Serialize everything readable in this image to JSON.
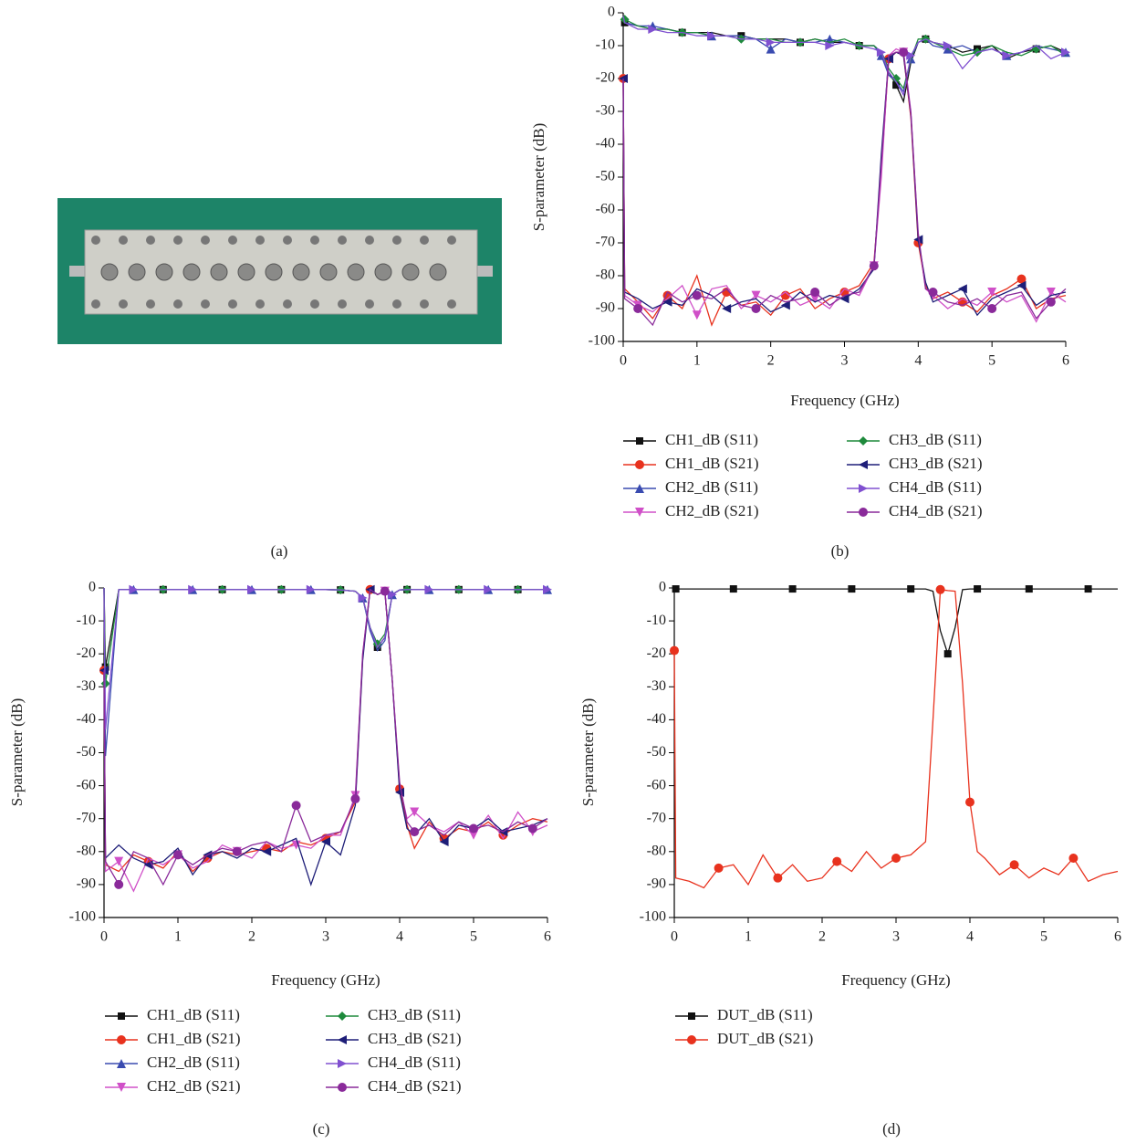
{
  "photo": {
    "label": "(a)"
  },
  "chart_data": [
    {
      "type": "line",
      "panel_label": "(b)",
      "x_label": "Frequency (GHz)",
      "y_label": "S-parameter (dB)",
      "xlim": [
        0,
        6
      ],
      "xticks": [
        0,
        1,
        2,
        3,
        4,
        5,
        6
      ],
      "ylim": [
        -100,
        0
      ],
      "yticks": [
        0,
        -10,
        -20,
        -30,
        -40,
        -50,
        -60,
        -70,
        -80,
        -90,
        -100
      ],
      "legend_columns": 2,
      "x": [
        0,
        0.02,
        0.2,
        0.4,
        0.6,
        0.8,
        1.0,
        1.2,
        1.4,
        1.6,
        1.8,
        2.0,
        2.2,
        2.4,
        2.6,
        2.8,
        3.0,
        3.2,
        3.4,
        3.5,
        3.6,
        3.7,
        3.8,
        3.9,
        4.0,
        4.1,
        4.2,
        4.4,
        4.6,
        4.8,
        5.0,
        5.2,
        5.4,
        5.6,
        5.8,
        6.0
      ],
      "series": [
        {
          "name": "CH1_dB (S11)",
          "color": "#111111",
          "marker": "square",
          "values": [
            -1,
            -3,
            -4,
            -5,
            -5,
            -6,
            -6,
            -6,
            -7,
            -7,
            -8,
            -8,
            -8,
            -9,
            -8,
            -9,
            -9,
            -10,
            -10,
            -12,
            -18,
            -22,
            -27,
            -15,
            -9,
            -8,
            -9,
            -10,
            -12,
            -11,
            -10,
            -14,
            -12,
            -11,
            -10,
            -12
          ]
        },
        {
          "name": "CH1_dB (S21)",
          "color": "#e8321e",
          "marker": "circle",
          "values": [
            -20,
            -84,
            -88,
            -93,
            -86,
            -90,
            -80,
            -95,
            -85,
            -89,
            -88,
            -92,
            -86,
            -84,
            -90,
            -87,
            -85,
            -83,
            -76,
            -48,
            -14,
            -12,
            -13,
            -32,
            -70,
            -83,
            -87,
            -85,
            -88,
            -91,
            -86,
            -84,
            -81,
            -90,
            -87,
            -86
          ]
        },
        {
          "name": "CH2_dB (S11)",
          "color": "#3a4bb0",
          "marker": "triangle-up",
          "values": [
            -1,
            -3,
            -4,
            -4,
            -5,
            -6,
            -6,
            -7,
            -7,
            -7,
            -8,
            -11,
            -8,
            -9,
            -9,
            -8,
            -9,
            -10,
            -10,
            -13,
            -19,
            -21,
            -24,
            -14,
            -9,
            -8,
            -10,
            -11,
            -10,
            -12,
            -11,
            -13,
            -12,
            -10,
            -11,
            -12
          ]
        },
        {
          "name": "CH2_dB (S21)",
          "color": "#d050c8",
          "marker": "triangle-down",
          "values": [
            -20,
            -86,
            -89,
            -91,
            -87,
            -83,
            -92,
            -84,
            -83,
            -90,
            -86,
            -88,
            -85,
            -89,
            -87,
            -90,
            -84,
            -86,
            -77,
            -50,
            -13,
            -11,
            -12,
            -30,
            -68,
            -84,
            -86,
            -90,
            -87,
            -89,
            -85,
            -88,
            -86,
            -94,
            -85,
            -88
          ]
        },
        {
          "name": "CH3_dB (S11)",
          "color": "#1e8a3c",
          "marker": "diamond",
          "values": [
            -1,
            -2,
            -4,
            -5,
            -5,
            -6,
            -6,
            -7,
            -7,
            -8,
            -8,
            -8,
            -9,
            -9,
            -8,
            -9,
            -8,
            -10,
            -10,
            -12,
            -17,
            -20,
            -23,
            -14,
            -8,
            -8,
            -9,
            -11,
            -13,
            -12,
            -10,
            -12,
            -13,
            -11,
            -10,
            -13
          ]
        },
        {
          "name": "CH3_dB (S21)",
          "color": "#1e1e78",
          "marker": "triangle-left",
          "values": [
            -20,
            -85,
            -87,
            -90,
            -88,
            -89,
            -84,
            -86,
            -90,
            -88,
            -87,
            -91,
            -89,
            -85,
            -88,
            -86,
            -87,
            -84,
            -78,
            -43,
            -14,
            -12,
            -13,
            -31,
            -69,
            -82,
            -88,
            -86,
            -84,
            -92,
            -87,
            -85,
            -83,
            -89,
            -86,
            -85
          ]
        },
        {
          "name": "CH4_dB (S11)",
          "color": "#8050d0",
          "marker": "triangle-right",
          "values": [
            -1,
            -3,
            -5,
            -5,
            -6,
            -6,
            -7,
            -7,
            -7,
            -8,
            -8,
            -9,
            -9,
            -9,
            -9,
            -10,
            -9,
            -10,
            -11,
            -12,
            -18,
            -21,
            -25,
            -13,
            -9,
            -8,
            -9,
            -10,
            -17,
            -12,
            -11,
            -13,
            -12,
            -10,
            -14,
            -12
          ]
        },
        {
          "name": "CH4_dB (S21)",
          "color": "#8a2a9a",
          "marker": "circle",
          "values": [
            -20,
            -87,
            -90,
            -95,
            -85,
            -88,
            -86,
            -87,
            -84,
            -89,
            -90,
            -86,
            -88,
            -87,
            -85,
            -89,
            -86,
            -85,
            -77,
            -46,
            -13,
            -12,
            -12,
            -31,
            -67,
            -84,
            -85,
            -88,
            -89,
            -87,
            -90,
            -86,
            -85,
            -93,
            -88,
            -84
          ]
        }
      ]
    },
    {
      "type": "line",
      "panel_label": "(c)",
      "x_label": "Frequency (GHz)",
      "y_label": "S-parameter (dB)",
      "xlim": [
        0,
        6
      ],
      "xticks": [
        0,
        1,
        2,
        3,
        4,
        5,
        6
      ],
      "ylim": [
        -100,
        0
      ],
      "yticks": [
        0,
        -10,
        -20,
        -30,
        -40,
        -50,
        -60,
        -70,
        -80,
        -90,
        -100
      ],
      "legend_columns": 2,
      "x": [
        0,
        0.02,
        0.2,
        0.4,
        0.6,
        0.8,
        1.0,
        1.2,
        1.4,
        1.6,
        1.8,
        2.0,
        2.2,
        2.4,
        2.6,
        2.8,
        3.0,
        3.2,
        3.4,
        3.5,
        3.6,
        3.7,
        3.8,
        3.9,
        4.0,
        4.1,
        4.2,
        4.4,
        4.6,
        4.8,
        5.0,
        5.2,
        5.4,
        5.6,
        5.8,
        6.0
      ],
      "series": [
        {
          "name": "CH1_dB (S11)",
          "color": "#111111",
          "marker": "square",
          "values": [
            0,
            -24,
            -0.5,
            -0.5,
            -0.5,
            -0.5,
            -0.5,
            -0.5,
            -0.5,
            -0.5,
            -0.5,
            -0.5,
            -0.5,
            -0.5,
            -0.5,
            -0.5,
            -0.5,
            -0.6,
            -1,
            -3,
            -12,
            -18,
            -15,
            -2,
            -0.6,
            -0.5,
            -0.5,
            -0.5,
            -0.5,
            -0.5,
            -0.5,
            -0.5,
            -0.5,
            -0.5,
            -0.5,
            -0.5
          ]
        },
        {
          "name": "CH1_dB (S21)",
          "color": "#e8321e",
          "marker": "circle",
          "values": [
            -25,
            -84,
            -86,
            -81,
            -83,
            -85,
            -80,
            -86,
            -82,
            -80,
            -81,
            -80,
            -79,
            -80,
            -77,
            -78,
            -76,
            -74,
            -65,
            -21,
            -0.5,
            -2,
            -1,
            -28,
            -61,
            -72,
            -79,
            -71,
            -76,
            -73,
            -74,
            -71,
            -75,
            -72,
            -70,
            -71
          ]
        },
        {
          "name": "CH2_dB (S11)",
          "color": "#3a4bb0",
          "marker": "triangle-up",
          "values": [
            0,
            -51,
            -0.5,
            -0.5,
            -0.5,
            -0.5,
            -0.5,
            -0.5,
            -0.5,
            -0.5,
            -0.5,
            -0.5,
            -0.5,
            -0.5,
            -0.5,
            -0.5,
            -0.5,
            -0.6,
            -1,
            -3,
            -13,
            -19,
            -16,
            -2,
            -0.6,
            -0.5,
            -0.5,
            -0.5,
            -0.5,
            -0.5,
            -0.5,
            -0.5,
            -0.5,
            -0.5,
            -0.5,
            -0.5
          ]
        },
        {
          "name": "CH2_dB (S21)",
          "color": "#d050c8",
          "marker": "triangle-down",
          "values": [
            -25,
            -86,
            -83,
            -92,
            -82,
            -84,
            -81,
            -85,
            -83,
            -78,
            -80,
            -82,
            -77,
            -79,
            -78,
            -79,
            -75,
            -75,
            -63,
            -20,
            -0.5,
            -2,
            -1,
            -28,
            -60,
            -70,
            -68,
            -72,
            -74,
            -71,
            -75,
            -69,
            -76,
            -68,
            -74,
            -72
          ]
        },
        {
          "name": "CH3_dB (S11)",
          "color": "#1e8a3c",
          "marker": "diamond",
          "values": [
            0,
            -29,
            -0.5,
            -0.5,
            -0.5,
            -0.5,
            -0.5,
            -0.5,
            -0.5,
            -0.5,
            -0.5,
            -0.5,
            -0.5,
            -0.5,
            -0.5,
            -0.5,
            -0.5,
            -0.6,
            -1,
            -3,
            -12,
            -17,
            -14,
            -2,
            -0.6,
            -0.5,
            -0.5,
            -0.5,
            -0.5,
            -0.5,
            -0.5,
            -0.5,
            -0.5,
            -0.5,
            -0.5,
            -0.5
          ]
        },
        {
          "name": "CH3_dB (S21)",
          "color": "#1e1e78",
          "marker": "triangle-left",
          "values": [
            -25,
            -82,
            -78,
            -82,
            -84,
            -83,
            -79,
            -87,
            -81,
            -80,
            -82,
            -79,
            -80,
            -78,
            -76,
            -90,
            -77,
            -81,
            -66,
            -22,
            -0.5,
            -2,
            -1,
            -28,
            -62,
            -73,
            -75,
            -70,
            -77,
            -72,
            -73,
            -70,
            -74,
            -73,
            -72,
            -70
          ]
        },
        {
          "name": "CH4_dB (S11)",
          "color": "#8050d0",
          "marker": "triangle-right",
          "values": [
            0,
            -43,
            -0.5,
            -0.5,
            -0.5,
            -0.5,
            -0.5,
            -0.5,
            -0.5,
            -0.5,
            -0.5,
            -0.5,
            -0.5,
            -0.5,
            -0.5,
            -0.5,
            -0.5,
            -0.6,
            -1,
            -3,
            -12,
            -18,
            -15,
            -2,
            -0.6,
            -0.5,
            -0.5,
            -0.5,
            -0.5,
            -0.5,
            -0.5,
            -0.5,
            -0.5,
            -0.5,
            -0.5,
            -0.5
          ]
        },
        {
          "name": "CH4_dB (S21)",
          "color": "#8a2a9a",
          "marker": "circle",
          "values": [
            -25,
            -83,
            -90,
            -80,
            -82,
            -90,
            -81,
            -84,
            -81,
            -79,
            -80,
            -78,
            -77,
            -80,
            -66,
            -77,
            -75,
            -74,
            -64,
            -20,
            -0.5,
            -2,
            -1,
            -28,
            -59,
            -71,
            -74,
            -72,
            -75,
            -71,
            -73,
            -72,
            -74,
            -71,
            -73,
            -70
          ]
        }
      ]
    },
    {
      "type": "line",
      "panel_label": "(d)",
      "x_label": "Frequency (GHz)",
      "y_label": "S-parameter (dB)",
      "xlim": [
        0,
        6
      ],
      "xticks": [
        0,
        1,
        2,
        3,
        4,
        5,
        6
      ],
      "ylim": [
        -100,
        0
      ],
      "yticks": [
        0,
        -10,
        -20,
        -30,
        -40,
        -50,
        -60,
        -70,
        -80,
        -90,
        -100
      ],
      "legend_columns": 1,
      "x": [
        0,
        0.02,
        0.2,
        0.4,
        0.6,
        0.8,
        1.0,
        1.2,
        1.4,
        1.6,
        1.8,
        2.0,
        2.2,
        2.4,
        2.6,
        2.8,
        3.0,
        3.2,
        3.4,
        3.5,
        3.6,
        3.7,
        3.8,
        3.9,
        4.0,
        4.1,
        4.2,
        4.4,
        4.6,
        4.8,
        5.0,
        5.2,
        5.4,
        5.6,
        5.8,
        6.0
      ],
      "series": [
        {
          "name": "DUT_dB (S11)",
          "color": "#111111",
          "marker": "square",
          "values": [
            0,
            -0.3,
            -0.3,
            -0.3,
            -0.3,
            -0.3,
            -0.3,
            -0.3,
            -0.3,
            -0.3,
            -0.3,
            -0.3,
            -0.3,
            -0.3,
            -0.3,
            -0.3,
            -0.3,
            -0.3,
            -0.3,
            -1,
            -13,
            -20,
            -12,
            -0.5,
            -0.3,
            -0.3,
            -0.3,
            -0.3,
            -0.3,
            -0.3,
            -0.3,
            -0.3,
            -0.3,
            -0.3,
            -0.3,
            -0.3
          ]
        },
        {
          "name": "DUT_dB (S21)",
          "color": "#e8321e",
          "marker": "circle",
          "values": [
            -19,
            -88,
            -89,
            -91,
            -85,
            -84,
            -90,
            -81,
            -88,
            -84,
            -89,
            -88,
            -83,
            -86,
            -80,
            -85,
            -82,
            -81,
            -77,
            -40,
            -0.5,
            -0.8,
            -1,
            -29,
            -65,
            -80,
            -82,
            -87,
            -84,
            -88,
            -85,
            -87,
            -82,
            -89,
            -87,
            -86
          ]
        }
      ]
    }
  ]
}
